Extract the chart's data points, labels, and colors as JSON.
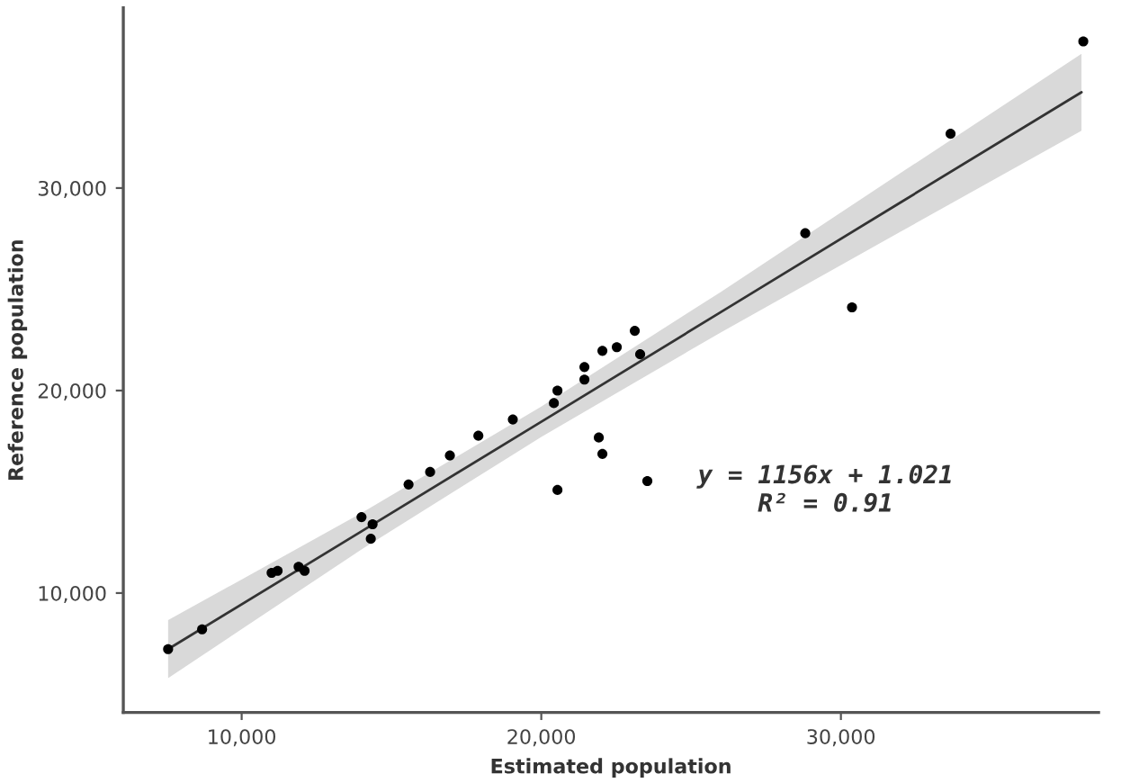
{
  "chart_data": {
    "type": "scatter",
    "xlabel": "Estimated population",
    "ylabel": "Reference population",
    "xlim": [
      6050,
      38600
    ],
    "ylim": [
      4100,
      38900
    ],
    "xticks": [
      {
        "value": 10000,
        "label": "10,000"
      },
      {
        "value": 20000,
        "label": "20,000"
      },
      {
        "value": 30000,
        "label": "30,000"
      }
    ],
    "yticks": [
      {
        "value": 10000,
        "label": "10,000"
      },
      {
        "value": 20000,
        "label": "20,000"
      },
      {
        "value": 30000,
        "label": "30,000"
      }
    ],
    "grid": false,
    "legend": false,
    "series": [
      {
        "type": "line",
        "color": "#333333",
        "x": [
          7545,
          14000,
          20000,
          26000,
          32000,
          38030
        ],
        "values": [
          7230,
          13050,
          18460,
          23880,
          29300,
          34730
        ],
        "lower": [
          5800,
          12150,
          17710,
          22880,
          27850,
          32830
        ],
        "upper": [
          8660,
          13950,
          19210,
          24880,
          30750,
          36630
        ]
      },
      {
        "color": "#000000",
        "marker": "circle",
        "x": [
          7545,
          8680,
          11000,
          11200,
          11900,
          12100,
          14000,
          14370,
          14310,
          15570,
          16290,
          16950,
          17900,
          19050,
          20420,
          20540,
          20540,
          21440,
          21440,
          22040,
          22520,
          23120,
          23300,
          21920,
          22040,
          23540,
          28810,
          30370,
          33660,
          38090
        ],
        "values": [
          7230,
          8210,
          11000,
          11100,
          11300,
          11100,
          13750,
          13400,
          12680,
          15360,
          15980,
          16790,
          17770,
          18570,
          19380,
          20000,
          15090,
          21160,
          20540,
          21960,
          22140,
          22950,
          21790,
          17680,
          16870,
          15530,
          27770,
          24110,
          32680,
          37240
        ]
      }
    ],
    "annotations": [
      "y = 1156x + 1.021",
      "R² = 0.91"
    ]
  }
}
